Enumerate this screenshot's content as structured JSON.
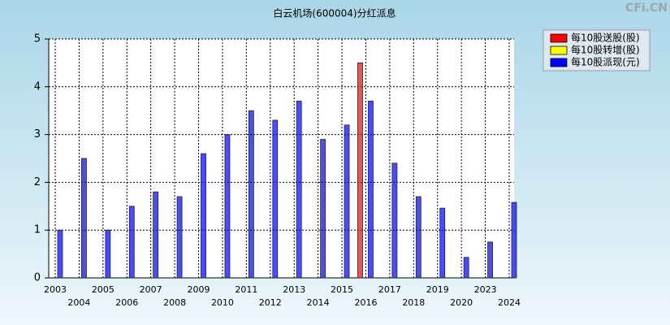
{
  "chart_data": {
    "type": "bar",
    "title": "白云机场(600004)分红派息",
    "watermark": "CFi.CN",
    "categories": [
      "2003",
      "2004",
      "2005",
      "2006",
      "2007",
      "2008",
      "2009",
      "2010",
      "2011",
      "2012",
      "2013",
      "2014",
      "2015",
      "2016",
      "2017",
      "2018",
      "2019",
      "2020",
      "2023",
      "2024"
    ],
    "series": [
      {
        "name": "每10股送股(股)",
        "color": "#ff0000",
        "values": [
          null,
          null,
          null,
          null,
          null,
          null,
          null,
          null,
          null,
          null,
          null,
          null,
          null,
          4.5,
          null,
          null,
          null,
          null,
          null,
          null
        ]
      },
      {
        "name": "每10股转增(股)",
        "color": "#ffff00",
        "values": [
          null,
          null,
          null,
          null,
          null,
          null,
          null,
          null,
          null,
          null,
          null,
          null,
          null,
          null,
          null,
          null,
          null,
          null,
          null,
          null
        ]
      },
      {
        "name": "每10股派现(元)",
        "color": "#0000ff",
        "values": [
          1.0,
          2.5,
          1.0,
          1.5,
          1.8,
          1.7,
          2.6,
          3.0,
          3.5,
          3.3,
          3.7,
          2.9,
          3.2,
          3.7,
          2.4,
          1.7,
          1.46,
          0.43,
          0.75,
          1.58
        ]
      }
    ],
    "ylim": [
      0,
      5
    ],
    "yticks": [
      0,
      1,
      2,
      3,
      4,
      5
    ],
    "grid": true,
    "legend": "top-right"
  }
}
